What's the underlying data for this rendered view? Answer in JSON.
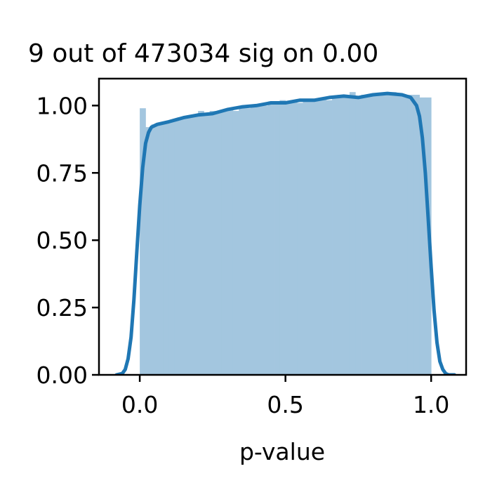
{
  "chart_data": {
    "type": "histogram",
    "title": "9 out of 473034 sig on 0.00",
    "xlabel": "p-value",
    "ylabel": "",
    "xlim": [
      -0.14,
      1.12
    ],
    "ylim": [
      0.0,
      1.1
    ],
    "x_ticks": [
      "0.0",
      "0.5",
      "1.0"
    ],
    "y_ticks": [
      "0.00",
      "0.25",
      "0.50",
      "0.75",
      "1.00"
    ],
    "grid": false,
    "legend": "none",
    "bins": {
      "start": 0.0,
      "width": 0.02,
      "values": [
        0.99,
        0.92,
        0.93,
        0.93,
        0.94,
        0.94,
        0.95,
        0.95,
        0.96,
        0.96,
        0.98,
        0.97,
        0.98,
        0.98,
        0.98,
        0.99,
        0.98,
        0.99,
        0.99,
        1.0,
        1.0,
        1.0,
        1.01,
        1.01,
        1.02,
        1.01,
        1.02,
        1.01,
        1.02,
        1.02,
        1.02,
        1.03,
        1.02,
        1.03,
        1.04,
        1.03,
        1.05,
        1.03,
        1.04,
        1.04,
        1.04,
        1.04,
        1.04,
        1.05,
        1.04,
        1.04,
        1.04,
        1.04,
        1.03,
        1.03
      ]
    },
    "kde": {
      "x": [
        -0.08,
        -0.06,
        -0.05,
        -0.04,
        -0.03,
        -0.02,
        -0.01,
        0.0,
        0.01,
        0.02,
        0.03,
        0.04,
        0.06,
        0.1,
        0.15,
        0.2,
        0.25,
        0.3,
        0.35,
        0.4,
        0.45,
        0.5,
        0.55,
        0.6,
        0.65,
        0.7,
        0.75,
        0.8,
        0.85,
        0.9,
        0.93,
        0.95,
        0.96,
        0.97,
        0.98,
        0.99,
        1.0,
        1.01,
        1.02,
        1.03,
        1.04,
        1.05,
        1.06,
        1.08
      ],
      "y": [
        0.0,
        0.005,
        0.02,
        0.06,
        0.14,
        0.28,
        0.46,
        0.63,
        0.77,
        0.86,
        0.9,
        0.92,
        0.93,
        0.94,
        0.955,
        0.965,
        0.97,
        0.985,
        0.995,
        1.0,
        1.01,
        1.01,
        1.02,
        1.02,
        1.03,
        1.035,
        1.03,
        1.04,
        1.045,
        1.04,
        1.03,
        1.0,
        0.96,
        0.88,
        0.75,
        0.58,
        0.4,
        0.24,
        0.12,
        0.05,
        0.02,
        0.005,
        0.0,
        0.0
      ]
    },
    "colors": {
      "bars": "#a3c6df",
      "kde": "#1f77b4"
    }
  }
}
